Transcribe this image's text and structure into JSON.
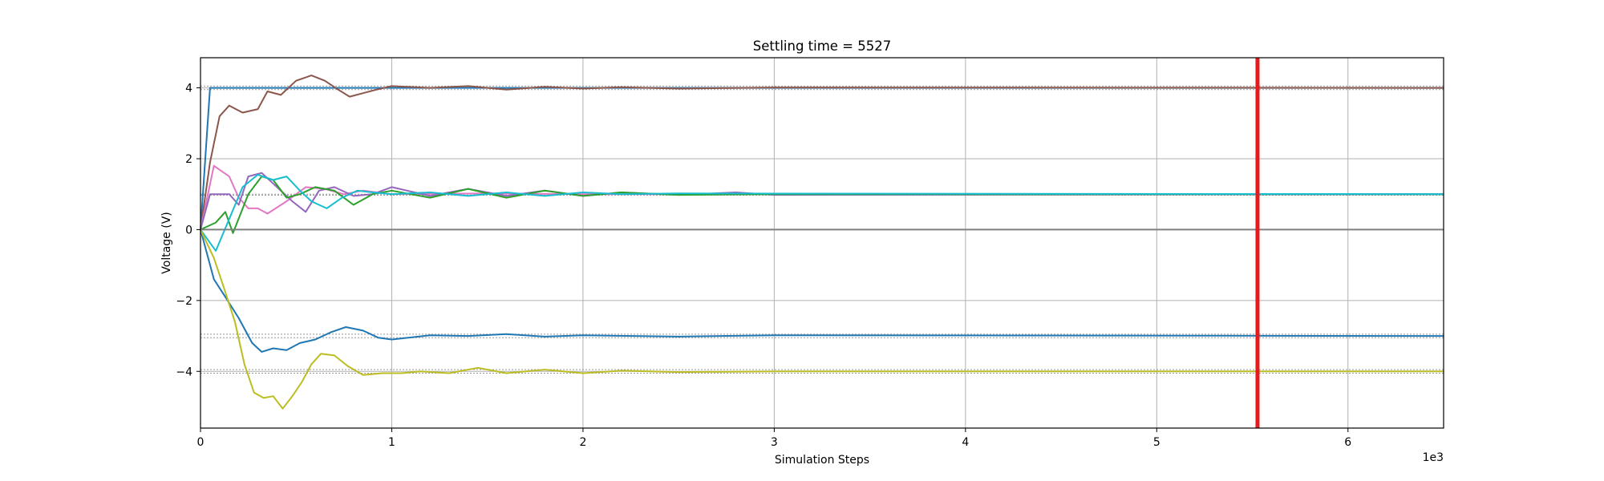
{
  "chart_data": {
    "type": "line",
    "title": "Settling time = 5527",
    "xlabel": "Simulation Steps",
    "ylabel": "Voltage (V)",
    "x_offset_label": "1e3",
    "xlim": [
      0,
      6.5
    ],
    "ylim": [
      -5.6,
      4.85
    ],
    "x_ticks": [
      0,
      1,
      2,
      3,
      4,
      5,
      6
    ],
    "x_tick_labels": [
      "0",
      "1",
      "2",
      "3",
      "4",
      "5",
      "6"
    ],
    "y_ticks": [
      -4,
      -2,
      0,
      2,
      4
    ],
    "y_tick_labels": [
      "−4",
      "−2",
      "0",
      "2",
      "4"
    ],
    "grid": true,
    "settling_time": 5.527,
    "settling_color": "#e41a1c",
    "targets": [
      4.05,
      3.95,
      1.0,
      0.97,
      -2.95,
      -3.05,
      -3.95,
      -4.05
    ],
    "series": [
      {
        "color": "#1f77b4",
        "points": [
          [
            0,
            0
          ],
          [
            0.05,
            4.0
          ],
          [
            0.3,
            4.0
          ],
          [
            1,
            4.0
          ],
          [
            6.5,
            4.0
          ]
        ]
      },
      {
        "color": "#8c564b",
        "points": [
          [
            0,
            0
          ],
          [
            0.05,
            1.9
          ],
          [
            0.1,
            3.2
          ],
          [
            0.15,
            3.5
          ],
          [
            0.22,
            3.3
          ],
          [
            0.3,
            3.4
          ],
          [
            0.35,
            3.9
          ],
          [
            0.42,
            3.8
          ],
          [
            0.5,
            4.2
          ],
          [
            0.58,
            4.35
          ],
          [
            0.65,
            4.2
          ],
          [
            0.72,
            3.95
          ],
          [
            0.78,
            3.75
          ],
          [
            0.85,
            3.85
          ],
          [
            0.92,
            3.95
          ],
          [
            1.0,
            4.05
          ],
          [
            1.2,
            4.0
          ],
          [
            1.4,
            4.05
          ],
          [
            1.6,
            3.95
          ],
          [
            1.8,
            4.03
          ],
          [
            2.0,
            3.98
          ],
          [
            2.2,
            4.02
          ],
          [
            2.5,
            3.98
          ],
          [
            3.0,
            4.01
          ],
          [
            6.5,
            4.0
          ]
        ]
      },
      {
        "color": "#e377c2",
        "points": [
          [
            0,
            0
          ],
          [
            0.07,
            1.8
          ],
          [
            0.15,
            1.5
          ],
          [
            0.2,
            0.9
          ],
          [
            0.25,
            0.6
          ],
          [
            0.3,
            0.6
          ],
          [
            0.35,
            0.45
          ],
          [
            0.45,
            0.8
          ],
          [
            0.55,
            1.2
          ],
          [
            0.65,
            1.15
          ],
          [
            0.75,
            1.0
          ],
          [
            0.85,
            1.1
          ],
          [
            1.0,
            1.0
          ],
          [
            1.5,
            1.02
          ],
          [
            2.0,
            1.0
          ],
          [
            6.5,
            1.0
          ]
        ]
      },
      {
        "color": "#9467bd",
        "points": [
          [
            0,
            0
          ],
          [
            0.05,
            1.0
          ],
          [
            0.15,
            1.0
          ],
          [
            0.2,
            0.7
          ],
          [
            0.25,
            1.5
          ],
          [
            0.32,
            1.6
          ],
          [
            0.4,
            1.2
          ],
          [
            0.48,
            0.8
          ],
          [
            0.55,
            0.5
          ],
          [
            0.62,
            1.1
          ],
          [
            0.7,
            1.2
          ],
          [
            0.8,
            0.95
          ],
          [
            0.9,
            1.0
          ],
          [
            1.0,
            1.2
          ],
          [
            1.2,
            0.95
          ],
          [
            1.4,
            1.15
          ],
          [
            1.6,
            0.95
          ],
          [
            1.8,
            1.1
          ],
          [
            2.0,
            0.95
          ],
          [
            2.2,
            1.05
          ],
          [
            2.5,
            0.98
          ],
          [
            2.8,
            1.05
          ],
          [
            3.0,
            0.98
          ],
          [
            6.5,
            1.0
          ]
        ]
      },
      {
        "color": "#2ca02c",
        "points": [
          [
            0,
            0
          ],
          [
            0.08,
            0.2
          ],
          [
            0.13,
            0.5
          ],
          [
            0.17,
            -0.1
          ],
          [
            0.25,
            1.0
          ],
          [
            0.32,
            1.5
          ],
          [
            0.38,
            1.4
          ],
          [
            0.45,
            0.9
          ],
          [
            0.52,
            1.0
          ],
          [
            0.6,
            1.2
          ],
          [
            0.7,
            1.1
          ],
          [
            0.8,
            0.7
          ],
          [
            0.9,
            1.0
          ],
          [
            1.0,
            1.1
          ],
          [
            1.2,
            0.9
          ],
          [
            1.4,
            1.15
          ],
          [
            1.6,
            0.9
          ],
          [
            1.8,
            1.1
          ],
          [
            2.0,
            0.95
          ],
          [
            2.2,
            1.05
          ],
          [
            2.5,
            0.98
          ],
          [
            3.0,
            1.0
          ],
          [
            6.5,
            1.0
          ]
        ]
      },
      {
        "color": "#17becf",
        "points": [
          [
            0,
            0
          ],
          [
            0.08,
            -0.6
          ],
          [
            0.15,
            0.3
          ],
          [
            0.22,
            1.2
          ],
          [
            0.3,
            1.55
          ],
          [
            0.38,
            1.4
          ],
          [
            0.45,
            1.5
          ],
          [
            0.52,
            1.1
          ],
          [
            0.58,
            0.8
          ],
          [
            0.66,
            0.6
          ],
          [
            0.74,
            0.9
          ],
          [
            0.82,
            1.1
          ],
          [
            0.9,
            1.05
          ],
          [
            1.0,
            1.0
          ],
          [
            1.2,
            1.05
          ],
          [
            1.4,
            0.95
          ],
          [
            1.6,
            1.05
          ],
          [
            1.8,
            0.95
          ],
          [
            2.0,
            1.05
          ],
          [
            2.2,
            1.0
          ],
          [
            2.5,
            1.02
          ],
          [
            6.5,
            1.0
          ]
        ]
      },
      {
        "color": "#1f77b4",
        "points": [
          [
            0,
            0
          ],
          [
            0.07,
            -1.4
          ],
          [
            0.13,
            -1.9
          ],
          [
            0.2,
            -2.5
          ],
          [
            0.27,
            -3.2
          ],
          [
            0.32,
            -3.45
          ],
          [
            0.38,
            -3.35
          ],
          [
            0.45,
            -3.4
          ],
          [
            0.52,
            -3.2
          ],
          [
            0.6,
            -3.1
          ],
          [
            0.68,
            -2.9
          ],
          [
            0.76,
            -2.75
          ],
          [
            0.85,
            -2.85
          ],
          [
            0.93,
            -3.05
          ],
          [
            1.0,
            -3.1
          ],
          [
            1.2,
            -2.98
          ],
          [
            1.4,
            -3.0
          ],
          [
            1.6,
            -2.95
          ],
          [
            1.8,
            -3.02
          ],
          [
            2.0,
            -2.98
          ],
          [
            2.5,
            -3.02
          ],
          [
            3.0,
            -2.98
          ],
          [
            6.5,
            -3.0
          ]
        ]
      },
      {
        "color": "#bcbd22",
        "points": [
          [
            0,
            0
          ],
          [
            0.07,
            -0.8
          ],
          [
            0.12,
            -1.6
          ],
          [
            0.18,
            -2.6
          ],
          [
            0.23,
            -3.8
          ],
          [
            0.28,
            -4.6
          ],
          [
            0.33,
            -4.75
          ],
          [
            0.38,
            -4.7
          ],
          [
            0.43,
            -5.05
          ],
          [
            0.48,
            -4.7
          ],
          [
            0.53,
            -4.3
          ],
          [
            0.58,
            -3.8
          ],
          [
            0.63,
            -3.5
          ],
          [
            0.7,
            -3.55
          ],
          [
            0.77,
            -3.85
          ],
          [
            0.85,
            -4.1
          ],
          [
            0.95,
            -4.05
          ],
          [
            1.05,
            -4.05
          ],
          [
            1.15,
            -4.0
          ],
          [
            1.3,
            -4.05
          ],
          [
            1.45,
            -3.9
          ],
          [
            1.6,
            -4.05
          ],
          [
            1.8,
            -3.95
          ],
          [
            2.0,
            -4.05
          ],
          [
            2.2,
            -3.98
          ],
          [
            2.5,
            -4.02
          ],
          [
            3.0,
            -4.0
          ],
          [
            6.5,
            -4.0
          ]
        ]
      },
      {
        "color": "#7f7f7f",
        "points": [
          [
            0,
            0
          ],
          [
            6.5,
            0
          ]
        ]
      }
    ]
  }
}
